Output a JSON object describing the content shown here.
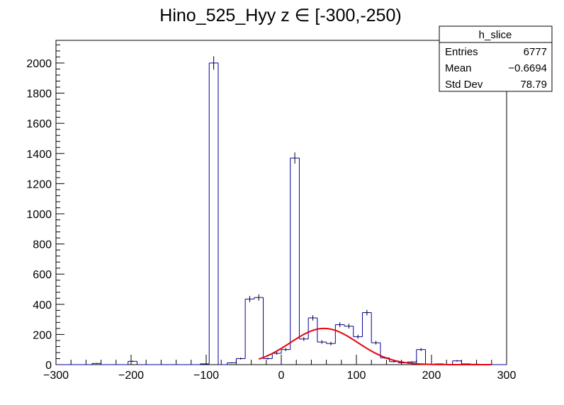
{
  "chart_data": {
    "type": "histogram",
    "title": "Hino_525_Hyy z  ∈ [-300,-250)",
    "xlabel": "",
    "ylabel": "",
    "xlim": [
      -300,
      300
    ],
    "ylim": [
      0,
      2150
    ],
    "xticks": [
      -300,
      -200,
      -100,
      0,
      100,
      200,
      300
    ],
    "yticks": [
      0,
      200,
      400,
      600,
      800,
      1000,
      1200,
      1400,
      1600,
      1800,
      2000
    ],
    "grid": false,
    "bin_width": 12,
    "bins": [
      {
        "lo": -300,
        "hi": -288,
        "count": 0
      },
      {
        "lo": -288,
        "hi": -276,
        "count": 0
      },
      {
        "lo": -276,
        "hi": -264,
        "count": 0
      },
      {
        "lo": -264,
        "hi": -252,
        "count": 0
      },
      {
        "lo": -252,
        "hi": -240,
        "count": 8
      },
      {
        "lo": -240,
        "hi": -228,
        "count": 0
      },
      {
        "lo": -228,
        "hi": -216,
        "count": 0
      },
      {
        "lo": -216,
        "hi": -204,
        "count": 0
      },
      {
        "lo": -204,
        "hi": -192,
        "count": 22
      },
      {
        "lo": -192,
        "hi": -180,
        "count": 0
      },
      {
        "lo": -180,
        "hi": -168,
        "count": 0
      },
      {
        "lo": -168,
        "hi": -156,
        "count": 0
      },
      {
        "lo": -156,
        "hi": -144,
        "count": 0
      },
      {
        "lo": -144,
        "hi": -132,
        "count": 0
      },
      {
        "lo": -132,
        "hi": -120,
        "count": 0
      },
      {
        "lo": -120,
        "hi": -108,
        "count": 0
      },
      {
        "lo": -108,
        "hi": -96,
        "count": 5
      },
      {
        "lo": -96,
        "hi": -84,
        "count": 2000
      },
      {
        "lo": -84,
        "hi": -72,
        "count": 0
      },
      {
        "lo": -72,
        "hi": -60,
        "count": 12
      },
      {
        "lo": -60,
        "hi": -48,
        "count": 40
      },
      {
        "lo": -48,
        "hi": -36,
        "count": 435
      },
      {
        "lo": -36,
        "hi": -24,
        "count": 445
      },
      {
        "lo": -24,
        "hi": -12,
        "count": 40
      },
      {
        "lo": -12,
        "hi": 0,
        "count": 75
      },
      {
        "lo": 0,
        "hi": 12,
        "count": 100
      },
      {
        "lo": 12,
        "hi": 24,
        "count": 1370
      },
      {
        "lo": 24,
        "hi": 36,
        "count": 170
      },
      {
        "lo": 36,
        "hi": 48,
        "count": 310
      },
      {
        "lo": 48,
        "hi": 60,
        "count": 150
      },
      {
        "lo": 60,
        "hi": 72,
        "count": 140
      },
      {
        "lo": 72,
        "hi": 84,
        "count": 265
      },
      {
        "lo": 84,
        "hi": 96,
        "count": 255
      },
      {
        "lo": 96,
        "hi": 108,
        "count": 185
      },
      {
        "lo": 108,
        "hi": 120,
        "count": 345
      },
      {
        "lo": 120,
        "hi": 132,
        "count": 145
      },
      {
        "lo": 132,
        "hi": 144,
        "count": 45
      },
      {
        "lo": 144,
        "hi": 156,
        "count": 20
      },
      {
        "lo": 156,
        "hi": 168,
        "count": 12
      },
      {
        "lo": 168,
        "hi": 180,
        "count": 18
      },
      {
        "lo": 180,
        "hi": 192,
        "count": 100
      },
      {
        "lo": 192,
        "hi": 204,
        "count": 0
      },
      {
        "lo": 204,
        "hi": 216,
        "count": 5
      },
      {
        "lo": 216,
        "hi": 228,
        "count": 0
      },
      {
        "lo": 228,
        "hi": 240,
        "count": 25
      },
      {
        "lo": 240,
        "hi": 252,
        "count": 5
      },
      {
        "lo": 252,
        "hi": 264,
        "count": 3
      },
      {
        "lo": 264,
        "hi": 276,
        "count": 0
      },
      {
        "lo": 276,
        "hi": 288,
        "count": 0
      },
      {
        "lo": 288,
        "hi": 300,
        "count": 0
      }
    ],
    "fit": {
      "type": "gaus",
      "x_range": [
        -30,
        280
      ],
      "amplitude": 240,
      "mean": 57,
      "sigma": 45
    },
    "stats_box": {
      "name": "h_slice",
      "rows": [
        {
          "label": "Entries",
          "value": "6777"
        },
        {
          "label": "Mean",
          "value": "−0.6694"
        },
        {
          "label": "Std Dev",
          "value": "78.79"
        }
      ]
    },
    "colors": {
      "histogram": "#000099",
      "error_bars": "#000000",
      "fit": "#e8000b",
      "axes": "#000000",
      "background": "#ffffff"
    }
  }
}
